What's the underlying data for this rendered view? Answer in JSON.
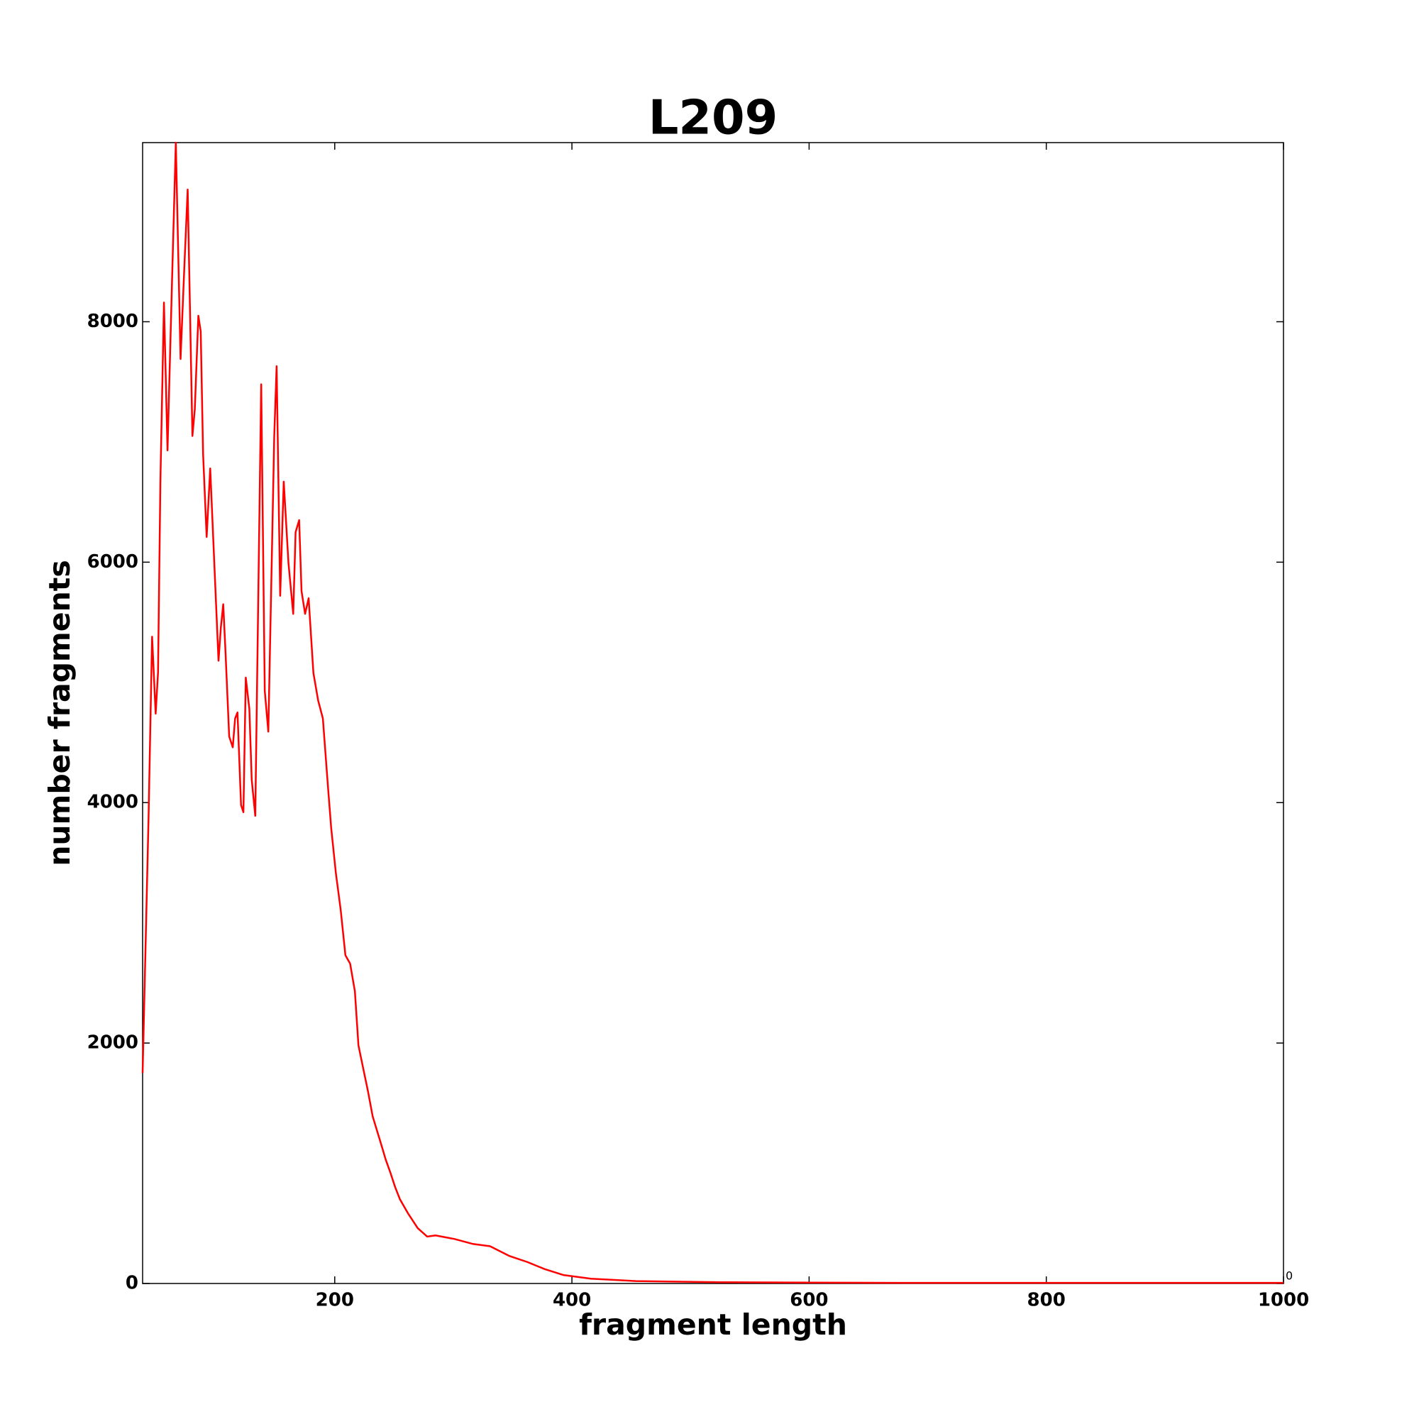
{
  "chart_data": {
    "type": "line",
    "title": "L209",
    "xlabel": "fragment length",
    "ylabel": "number fragments",
    "annotation": "0",
    "xlim": [
      38,
      1000
    ],
    "ylim": [
      0,
      9490
    ],
    "xticks": [
      200,
      400,
      600,
      800,
      1000
    ],
    "yticks": [
      0,
      2000,
      4000,
      6000,
      8000
    ],
    "grid": false,
    "series": [
      {
        "name": "L209",
        "color": "#ff0000",
        "x": [
          38,
          43,
          46,
          49,
          51,
          53,
          56,
          59,
          63,
          66,
          70,
          73,
          76,
          80,
          82,
          85,
          87,
          89,
          92,
          93,
          95,
          102,
          104,
          106,
          108,
          111,
          114,
          116,
          118,
          121,
          123,
          125,
          128,
          130,
          133,
          138,
          141,
          144,
          149,
          151,
          154,
          157,
          161,
          165,
          167,
          170,
          172,
          175,
          178,
          182,
          186,
          190,
          194,
          197,
          201,
          205,
          209,
          213,
          217,
          220,
          224,
          228,
          232,
          236,
          240,
          243,
          247,
          251,
          255,
          262,
          270,
          278,
          285,
          301,
          316,
          331,
          347,
          362,
          377,
          393,
          416,
          454,
          530,
          684,
          1000
        ],
        "values": [
          1750,
          3870,
          5380,
          4740,
          5080,
          6670,
          8160,
          6930,
          8410,
          9490,
          7690,
          8410,
          9100,
          7050,
          7270,
          8050,
          7920,
          6900,
          6210,
          6400,
          6780,
          5180,
          5460,
          5650,
          5230,
          4550,
          4460,
          4700,
          4750,
          3980,
          3920,
          5040,
          4780,
          4190,
          3890,
          7480,
          4930,
          4590,
          7050,
          7630,
          5720,
          6670,
          5990,
          5570,
          6250,
          6350,
          5760,
          5570,
          5700,
          5080,
          4850,
          4700,
          4170,
          3790,
          3410,
          3110,
          2730,
          2660,
          2430,
          1980,
          1790,
          1600,
          1390,
          1260,
          1130,
          1030,
          920,
          800,
          700,
          580,
          460,
          390,
          400,
          370,
          330,
          310,
          230,
          180,
          120,
          70,
          40,
          20,
          10,
          5,
          5
        ]
      }
    ]
  }
}
